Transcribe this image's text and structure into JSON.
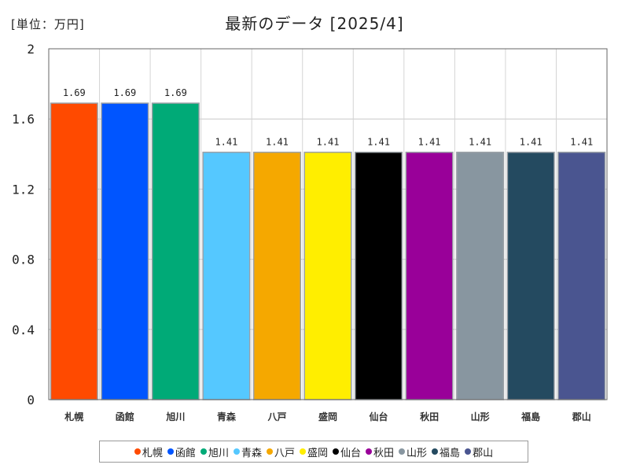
{
  "chart_data": {
    "type": "bar",
    "title": "最新のデータ [2025/4]",
    "unit_label": "[単位：万円]",
    "categories": [
      "札幌",
      "函館",
      "旭川",
      "青森",
      "八戸",
      "盛岡",
      "仙台",
      "秋田",
      "山形",
      "福島",
      "郡山"
    ],
    "values": [
      1.69,
      1.69,
      1.69,
      1.41,
      1.41,
      1.41,
      1.41,
      1.41,
      1.41,
      1.41,
      1.41
    ],
    "value_labels": [
      "1.69",
      "1.69",
      "1.69",
      "1.41",
      "1.41",
      "1.41",
      "1.41",
      "1.41",
      "1.41",
      "1.41",
      "1.41"
    ],
    "colors": [
      "#ff4a00",
      "#0055ff",
      "#00aa77",
      "#55c8ff",
      "#f5a800",
      "#ffee00",
      "#000000",
      "#990099",
      "#8896a0",
      "#244a60",
      "#4a5590"
    ],
    "ylim": [
      0,
      2
    ],
    "yticks": [
      0,
      0.4,
      0.8,
      1.2,
      1.6,
      2
    ],
    "ytick_labels": [
      "0",
      "0.4",
      "0.8",
      "1.2",
      "1.6",
      "2"
    ],
    "xlabel": "",
    "ylabel": "",
    "grid": true,
    "legend": "bottom"
  }
}
